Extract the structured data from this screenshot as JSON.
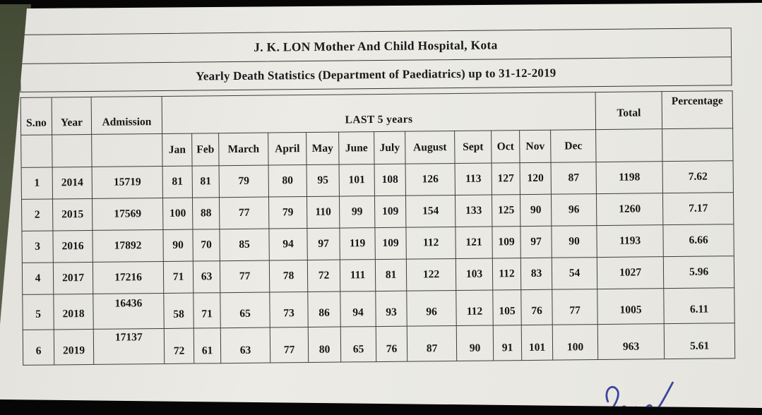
{
  "document": {
    "title": "J. K. LON Mother And Child Hospital, Kota",
    "subtitle": "Yearly Death Statistics (Department of Paediatrics) up to 31-12-2019"
  },
  "table": {
    "headers": {
      "sno": "S.no",
      "year": "Year",
      "admission": "Admission",
      "group": "LAST 5 years",
      "months": [
        "Jan",
        "Feb",
        "March",
        "April",
        "May",
        "June",
        "July",
        "August",
        "Sept",
        "Oct",
        "Nov",
        "Dec"
      ],
      "total": "Total",
      "percentage": "Percentage"
    },
    "rows": [
      {
        "sno": "1",
        "year": "2014",
        "admission": "15719",
        "months": [
          "81",
          "81",
          "79",
          "80",
          "95",
          "101",
          "108",
          "126",
          "113",
          "127",
          "120",
          "87"
        ],
        "total": "1198",
        "percentage": "7.62"
      },
      {
        "sno": "2",
        "year": "2015",
        "admission": "17569",
        "months": [
          "100",
          "88",
          "77",
          "79",
          "110",
          "99",
          "109",
          "154",
          "133",
          "125",
          "90",
          "96"
        ],
        "total": "1260",
        "percentage": "7.17"
      },
      {
        "sno": "3",
        "year": "2016",
        "admission": "17892",
        "months": [
          "90",
          "70",
          "85",
          "94",
          "97",
          "119",
          "109",
          "112",
          "121",
          "109",
          "97",
          "90"
        ],
        "total": "1193",
        "percentage": "6.66"
      },
      {
        "sno": "4",
        "year": "2017",
        "admission": "17216",
        "months": [
          "71",
          "63",
          "77",
          "78",
          "72",
          "111",
          "81",
          "122",
          "103",
          "112",
          "83",
          "54"
        ],
        "total": "1027",
        "percentage": "5.96"
      },
      {
        "sno": "5",
        "year": "2018",
        "admission": "16436",
        "months": [
          "58",
          "71",
          "65",
          "73",
          "86",
          "94",
          "93",
          "96",
          "112",
          "105",
          "76",
          "77"
        ],
        "total": "1005",
        "percentage": "6.11"
      },
      {
        "sno": "6",
        "year": "2019",
        "admission": "17137",
        "months": [
          "72",
          "61",
          "63",
          "77",
          "80",
          "65",
          "76",
          "87",
          "90",
          "91",
          "101",
          "100"
        ],
        "total": "963",
        "percentage": "5.61"
      }
    ]
  },
  "signature": {
    "description": "handwritten signature in blue ink, partially cut off at bottom right"
  },
  "colors": {
    "paper": "#e9e8e3",
    "ink": "#1a1a1a",
    "grid_line": "#3d3d3d",
    "signature_ink": "#2c3a96",
    "backdrop": "#060606",
    "surface_left_strip": "#525843"
  }
}
